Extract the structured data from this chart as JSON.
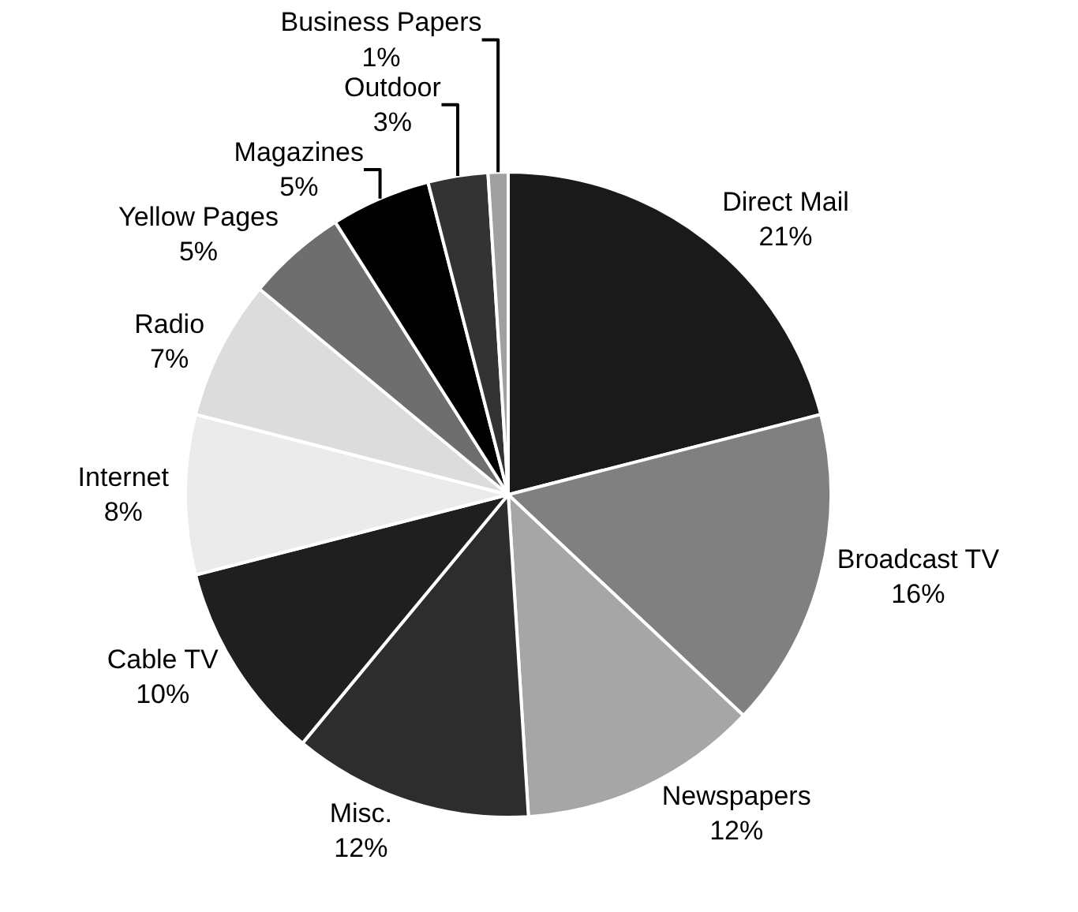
{
  "chart_data": {
    "type": "pie",
    "categories": [
      "Direct Mail",
      "Broadcast TV",
      "Newspapers",
      "Misc.",
      "Cable TV",
      "Internet",
      "Radio",
      "Yellow Pages",
      "Magazines",
      "Outdoor",
      "Business Papers"
    ],
    "values": [
      21,
      16,
      12,
      12,
      10,
      8,
      7,
      5,
      5,
      3,
      1
    ],
    "value_labels": [
      "21%",
      "16%",
      "12%",
      "12%",
      "10%",
      "8%",
      "7%",
      "5%",
      "5%",
      "3%",
      "1%"
    ],
    "colors": [
      "#1a1a1a",
      "#808080",
      "#a6a6a6",
      "#2d2d2d",
      "#1f1f1f",
      "#ebebeb",
      "#dcdcdc",
      "#6e6e6e",
      "#000000",
      "#333333",
      "#a0a0a0"
    ],
    "legend": false
  }
}
